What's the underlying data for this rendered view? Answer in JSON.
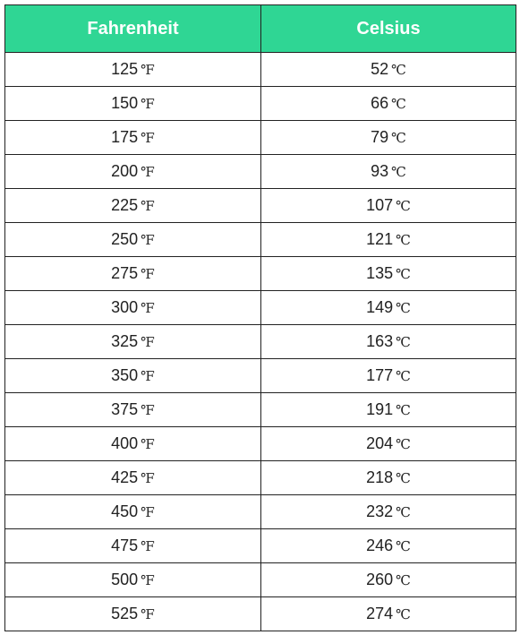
{
  "table": {
    "headers": [
      "Fahrenheit",
      "Celsius"
    ],
    "rows": [
      {
        "fahrenheit": "125",
        "celsius": "52"
      },
      {
        "fahrenheit": "150",
        "celsius": "66"
      },
      {
        "fahrenheit": "175",
        "celsius": "79"
      },
      {
        "fahrenheit": "200",
        "celsius": "93"
      },
      {
        "fahrenheit": "225",
        "celsius": "107"
      },
      {
        "fahrenheit": "250",
        "celsius": "121"
      },
      {
        "fahrenheit": "275",
        "celsius": "135"
      },
      {
        "fahrenheit": "300",
        "celsius": "149"
      },
      {
        "fahrenheit": "325",
        "celsius": "163"
      },
      {
        "fahrenheit": "350",
        "celsius": "177"
      },
      {
        "fahrenheit": "375",
        "celsius": "191"
      },
      {
        "fahrenheit": "400",
        "celsius": "204"
      },
      {
        "fahrenheit": "425",
        "celsius": "218"
      },
      {
        "fahrenheit": "450",
        "celsius": "232"
      },
      {
        "fahrenheit": "475",
        "celsius": "246"
      },
      {
        "fahrenheit": "500",
        "celsius": "260"
      },
      {
        "fahrenheit": "525",
        "celsius": "274"
      }
    ],
    "units": {
      "fahrenheit": "℉",
      "celsius": "℃"
    }
  },
  "colors": {
    "header_bg": "#2fd694",
    "header_text": "#ffffff",
    "border": "#222222",
    "cell_text": "#222222"
  }
}
